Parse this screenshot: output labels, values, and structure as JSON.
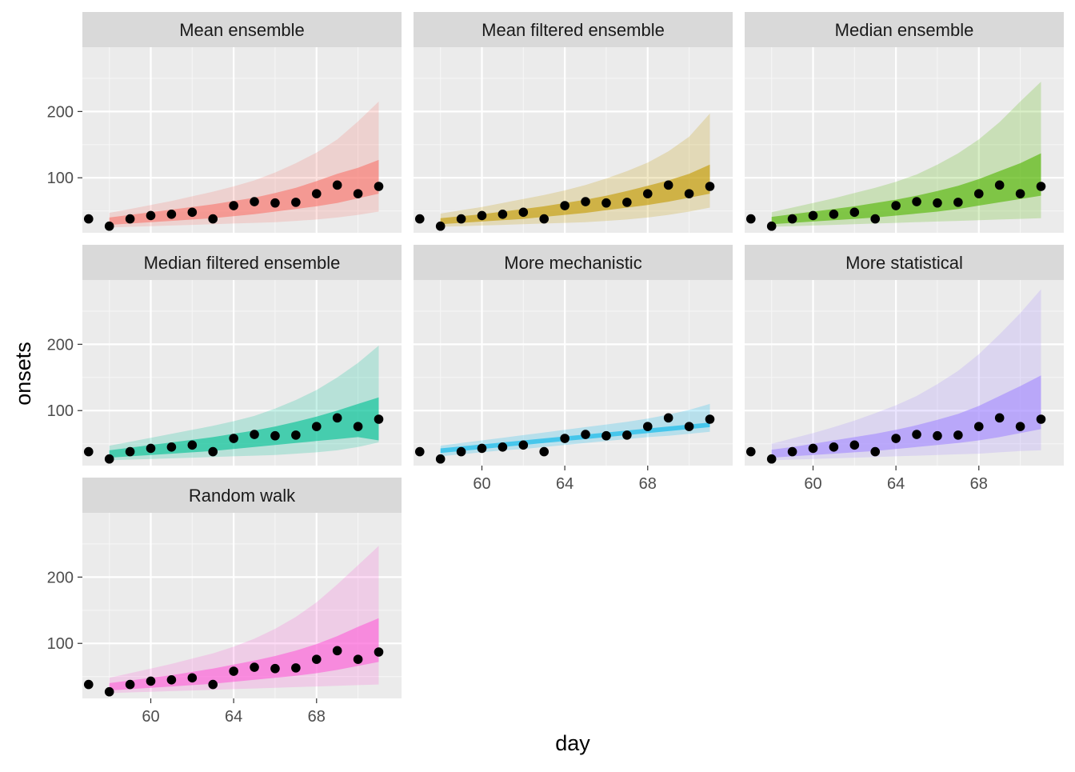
{
  "chart_data": {
    "type": "faceted-line-ribbon",
    "xlabel": "day",
    "ylabel": "onsets",
    "x_ticks": [
      60,
      64,
      68
    ],
    "y_ticks": [
      100,
      200
    ],
    "xlim": [
      56.7,
      72.1
    ],
    "ylim": [
      17,
      297
    ],
    "grid": true,
    "observed": {
      "day": [
        57,
        58,
        59,
        60,
        61,
        62,
        63,
        64,
        65,
        66,
        67,
        68,
        69,
        70,
        71
      ],
      "onsets": [
        38,
        27,
        38,
        43,
        45,
        48,
        38,
        58,
        64,
        62,
        63,
        76,
        89,
        76,
        87
      ]
    },
    "forecast_days": [
      58,
      59,
      60,
      61,
      62,
      63,
      64,
      65,
      66,
      67,
      68,
      69,
      70,
      71
    ],
    "panels": [
      {
        "title": "Mean ensemble",
        "color": "#F8766D",
        "inner_lower": [
          29,
          31,
          33,
          35,
          37,
          39,
          42,
          45,
          49,
          53,
          57,
          62,
          69,
          76
        ],
        "inner_upper": [
          40,
          44,
          48,
          52,
          56,
          60,
          65,
          70,
          77,
          85,
          95,
          106,
          115,
          127
        ],
        "outer_lower": [
          25,
          26,
          27,
          28,
          29,
          30,
          31,
          32,
          33,
          35,
          37,
          40,
          44,
          49
        ],
        "outer_upper": [
          47,
          53,
          59,
          65,
          72,
          79,
          87,
          96,
          108,
          122,
          138,
          158,
          185,
          215
        ]
      },
      {
        "title": "Mean filtered ensemble",
        "color": "#C49A00",
        "inner_lower": [
          30,
          32,
          34,
          36,
          38,
          41,
          44,
          47,
          51,
          55,
          59,
          64,
          70,
          76
        ],
        "inner_upper": [
          39,
          42,
          45,
          49,
          53,
          57,
          62,
          67,
          73,
          80,
          88,
          96,
          106,
          120
        ],
        "outer_lower": [
          26,
          27,
          28,
          29,
          30,
          31,
          32,
          33,
          35,
          37,
          40,
          44,
          49,
          55
        ],
        "outer_upper": [
          46,
          51,
          56,
          62,
          68,
          74,
          81,
          89,
          99,
          110,
          123,
          140,
          162,
          197
        ]
      },
      {
        "title": "Median ensemble",
        "color": "#53B400",
        "inner_lower": [
          30,
          32,
          34,
          36,
          38,
          40,
          43,
          46,
          49,
          53,
          58,
          63,
          68,
          73
        ],
        "inner_upper": [
          41,
          45,
          49,
          53,
          57,
          62,
          67,
          73,
          80,
          88,
          98,
          110,
          122,
          137
        ],
        "outer_lower": [
          26,
          27,
          28,
          29,
          30,
          31,
          32,
          33,
          34,
          35,
          36,
          37,
          38,
          39
        ],
        "outer_upper": [
          48,
          55,
          62,
          69,
          77,
          85,
          94,
          105,
          120,
          137,
          158,
          184,
          215,
          245
        ]
      },
      {
        "title": "Median filtered ensemble",
        "color": "#00C094",
        "inner_lower": [
          29,
          31,
          33,
          35,
          37,
          39,
          42,
          45,
          48,
          51,
          54,
          57,
          60,
          55
        ],
        "inner_upper": [
          40,
          44,
          48,
          52,
          56,
          60,
          65,
          70,
          76,
          83,
          91,
          100,
          110,
          120
        ],
        "outer_lower": [
          25,
          26,
          27,
          28,
          29,
          30,
          31,
          32,
          33,
          35,
          37,
          40,
          45,
          52
        ],
        "outer_upper": [
          47,
          53,
          59,
          65,
          71,
          77,
          84,
          92,
          103,
          116,
          131,
          150,
          172,
          198
        ]
      },
      {
        "title": "More mechanistic",
        "color": "#00B6EB",
        "inner_lower": [
          36,
          39,
          42,
          45,
          48,
          51,
          54,
          57,
          60,
          63,
          66,
          69,
          72,
          75
        ],
        "inner_upper": [
          43,
          46,
          49,
          52,
          55,
          58,
          61,
          64,
          67,
          70,
          73,
          76,
          79,
          82
        ],
        "outer_lower": [
          31,
          34,
          37,
          40,
          42,
          45,
          48,
          51,
          54,
          57,
          60,
          62,
          65,
          68
        ],
        "outer_upper": [
          47,
          51,
          55,
          59,
          63,
          67,
          71,
          75,
          79,
          83,
          88,
          94,
          101,
          110
        ]
      },
      {
        "title": "More statistical",
        "color": "#A58AFF",
        "inner_lower": [
          29,
          31,
          33,
          35,
          37,
          39,
          42,
          45,
          48,
          51,
          55,
          60,
          66,
          72
        ],
        "inner_upper": [
          41,
          45,
          50,
          55,
          60,
          65,
          71,
          78,
          86,
          95,
          107,
          122,
          137,
          153
        ],
        "outer_lower": [
          25,
          26,
          27,
          28,
          29,
          30,
          31,
          32,
          33,
          34,
          35,
          37,
          39,
          40
        ],
        "outer_upper": [
          50,
          58,
          66,
          75,
          85,
          96,
          108,
          122,
          140,
          160,
          185,
          215,
          247,
          283
        ]
      },
      {
        "title": "Random walk",
        "color": "#FB61D7",
        "inner_lower": [
          29,
          31,
          33,
          35,
          37,
          39,
          42,
          45,
          48,
          51,
          55,
          60,
          66,
          72
        ],
        "inner_upper": [
          40,
          44,
          48,
          52,
          57,
          62,
          68,
          74,
          81,
          89,
          99,
          111,
          125,
          138
        ],
        "outer_lower": [
          25,
          26,
          27,
          28,
          29,
          30,
          31,
          32,
          33,
          34,
          35,
          36,
          37,
          38
        ],
        "outer_upper": [
          48,
          55,
          62,
          69,
          77,
          85,
          95,
          107,
          122,
          140,
          162,
          189,
          218,
          247
        ]
      }
    ]
  }
}
